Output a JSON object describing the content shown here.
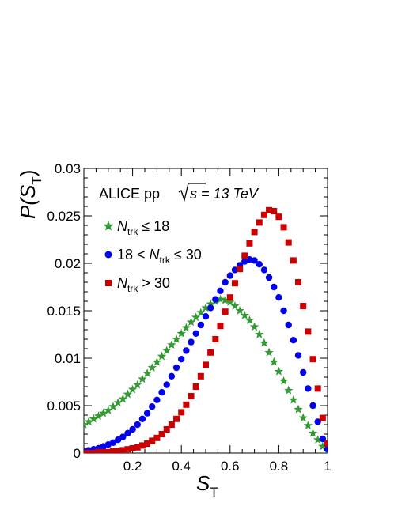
{
  "chart_data": {
    "type": "scatter",
    "xlabel": {
      "main": "S",
      "sub": "T"
    },
    "ylabel": {
      "main": "P(S",
      "sub": "T",
      "close": ")"
    },
    "xlim": [
      0.0,
      1.0
    ],
    "ylim": [
      0.0,
      0.03
    ],
    "xticks": [
      {
        "v": 0.2,
        "label": "0.2"
      },
      {
        "v": 0.4,
        "label": "0.4"
      },
      {
        "v": 0.6,
        "label": "0.6"
      },
      {
        "v": 0.8,
        "label": "0.8"
      },
      {
        "v": 1.0,
        "label": "1"
      }
    ],
    "yticks": [
      {
        "v": 0.0,
        "label": "0"
      },
      {
        "v": 0.005,
        "label": "0.005"
      },
      {
        "v": 0.01,
        "label": "0.01"
      },
      {
        "v": 0.015,
        "label": "0.015"
      },
      {
        "v": 0.02,
        "label": "0.02"
      },
      {
        "v": 0.025,
        "label": "0.025"
      },
      {
        "v": 0.03,
        "label": "0.03"
      }
    ],
    "annotation": {
      "text1": "ALICE pp ",
      "text2": "s = 13 TeV"
    },
    "legend_placement": "top-left",
    "series": [
      {
        "legend": {
          "pre": "",
          "n": "N",
          "sub": "trk",
          "post": " ≤ 18"
        },
        "marker": "star",
        "color": "#339933",
        "x": [
          0.0,
          0.02,
          0.04,
          0.06,
          0.08,
          0.1,
          0.12,
          0.14,
          0.16,
          0.18,
          0.2,
          0.22,
          0.24,
          0.26,
          0.28,
          0.3,
          0.32,
          0.34,
          0.36,
          0.38,
          0.4,
          0.42,
          0.44,
          0.46,
          0.48,
          0.5,
          0.52,
          0.54,
          0.56,
          0.58,
          0.6,
          0.62,
          0.64,
          0.66,
          0.68,
          0.7,
          0.72,
          0.74,
          0.76,
          0.78,
          0.8,
          0.82,
          0.84,
          0.86,
          0.88,
          0.9,
          0.92,
          0.94,
          0.96,
          0.98,
          1.0
        ],
        "y": [
          0.003,
          0.0033,
          0.0036,
          0.0039,
          0.0042,
          0.0045,
          0.0049,
          0.0053,
          0.0057,
          0.0062,
          0.0067,
          0.0072,
          0.0078,
          0.0084,
          0.009,
          0.0096,
          0.0102,
          0.0108,
          0.0114,
          0.012,
          0.0126,
          0.0132,
          0.0138,
          0.0143,
          0.0148,
          0.0153,
          0.0157,
          0.016,
          0.0162,
          0.0161,
          0.0159,
          0.0155,
          0.015,
          0.0145,
          0.014,
          0.0133,
          0.0125,
          0.0116,
          0.0106,
          0.0096,
          0.0086,
          0.0076,
          0.0066,
          0.0056,
          0.0046,
          0.0037,
          0.0029,
          0.0021,
          0.0014,
          0.0007,
          0.0002
        ]
      },
      {
        "legend": {
          "pre": "18 < ",
          "n": "N",
          "sub": "trk",
          "post": " ≤ 30"
        },
        "marker": "circle",
        "color": "#0000ee",
        "x": [
          0.0,
          0.02,
          0.04,
          0.06,
          0.08,
          0.1,
          0.12,
          0.14,
          0.16,
          0.18,
          0.2,
          0.22,
          0.24,
          0.26,
          0.28,
          0.3,
          0.32,
          0.34,
          0.36,
          0.38,
          0.4,
          0.42,
          0.44,
          0.46,
          0.48,
          0.5,
          0.52,
          0.54,
          0.56,
          0.58,
          0.6,
          0.62,
          0.64,
          0.66,
          0.68,
          0.7,
          0.72,
          0.74,
          0.76,
          0.78,
          0.8,
          0.82,
          0.84,
          0.86,
          0.88,
          0.9,
          0.92,
          0.94,
          0.96,
          0.98,
          1.0
        ],
        "y": [
          0.0002,
          0.0003,
          0.0004,
          0.0005,
          0.0007,
          0.0009,
          0.0011,
          0.0014,
          0.0017,
          0.0021,
          0.0025,
          0.003,
          0.0036,
          0.0042,
          0.0049,
          0.0056,
          0.0064,
          0.0072,
          0.0081,
          0.009,
          0.0099,
          0.0108,
          0.0117,
          0.0126,
          0.0135,
          0.0144,
          0.0153,
          0.0162,
          0.0171,
          0.018,
          0.0187,
          0.0193,
          0.0198,
          0.0202,
          0.0204,
          0.0203,
          0.0199,
          0.0193,
          0.0185,
          0.0175,
          0.0164,
          0.015,
          0.0135,
          0.0119,
          0.0103,
          0.0085,
          0.0068,
          0.005,
          0.0033,
          0.0015,
          0.0004
        ]
      },
      {
        "legend": {
          "pre": "",
          "n": "N",
          "sub": "trk",
          "post": " > 30"
        },
        "marker": "square",
        "color": "#cc0000",
        "x": [
          0.0,
          0.02,
          0.04,
          0.06,
          0.08,
          0.1,
          0.12,
          0.14,
          0.16,
          0.18,
          0.2,
          0.22,
          0.24,
          0.26,
          0.28,
          0.3,
          0.32,
          0.34,
          0.36,
          0.38,
          0.4,
          0.42,
          0.44,
          0.46,
          0.48,
          0.5,
          0.52,
          0.54,
          0.56,
          0.58,
          0.6,
          0.62,
          0.64,
          0.66,
          0.68,
          0.7,
          0.72,
          0.74,
          0.76,
          0.78,
          0.8,
          0.82,
          0.84,
          0.86,
          0.88,
          0.9,
          0.92,
          0.94,
          0.96,
          0.98,
          1.0
        ],
        "y": [
          0.0,
          0.0,
          0.0,
          0.0001,
          0.0001,
          0.0001,
          0.0002,
          0.0002,
          0.0003,
          0.0004,
          0.0005,
          0.0006,
          0.0008,
          0.001,
          0.0013,
          0.0016,
          0.002,
          0.0025,
          0.003,
          0.0036,
          0.0043,
          0.0051,
          0.006,
          0.007,
          0.0081,
          0.0093,
          0.0106,
          0.012,
          0.0134,
          0.0149,
          0.0164,
          0.0179,
          0.0194,
          0.0208,
          0.0221,
          0.0233,
          0.0243,
          0.0251,
          0.0256,
          0.0255,
          0.0249,
          0.0238,
          0.0222,
          0.0203,
          0.018,
          0.0155,
          0.0128,
          0.0099,
          0.0068,
          0.0037,
          0.001
        ]
      }
    ]
  }
}
